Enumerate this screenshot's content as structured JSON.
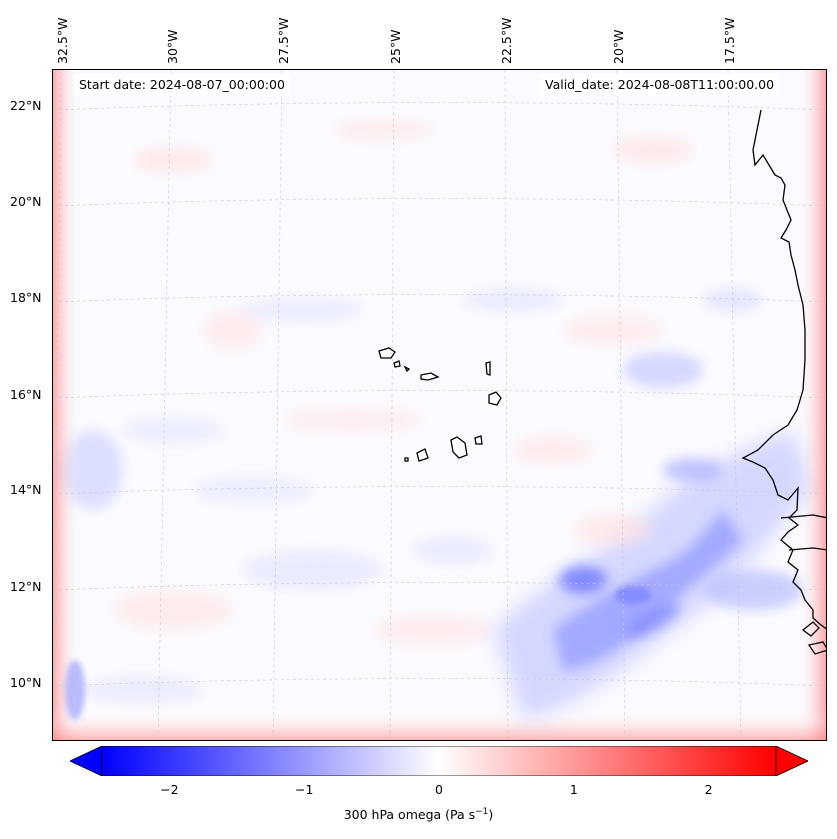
{
  "map": {
    "start_label": "Start date: 2024-08-07_00:00:00",
    "valid_label": "Valid_date: 2024-08-08T11:00:00.00",
    "lon_labels": [
      "32.5°W",
      "30°W",
      "27.5°W",
      "25°W",
      "22.5°W",
      "20°W",
      "17.5°W"
    ],
    "lat_labels": [
      "22°N",
      "20°N",
      "18°N",
      "16°N",
      "14°N",
      "12°N",
      "10°N"
    ],
    "coastline_color": "#000000",
    "grid_color": "#c8c8c8"
  },
  "colorbar": {
    "min": -2.5,
    "max": 2.5,
    "ticks": [
      "−2",
      "−1",
      "0",
      "1",
      "2"
    ],
    "tick_values": [
      -2,
      -1,
      0,
      1,
      2
    ],
    "extend": "both",
    "colormap": "bwr",
    "low_color": "#0000ff",
    "mid_color": "#ffffff",
    "high_color": "#ff0000",
    "title_text": "300 hPa omega (Pa s",
    "title_exponent": "−1",
    "title_close": ")"
  }
}
